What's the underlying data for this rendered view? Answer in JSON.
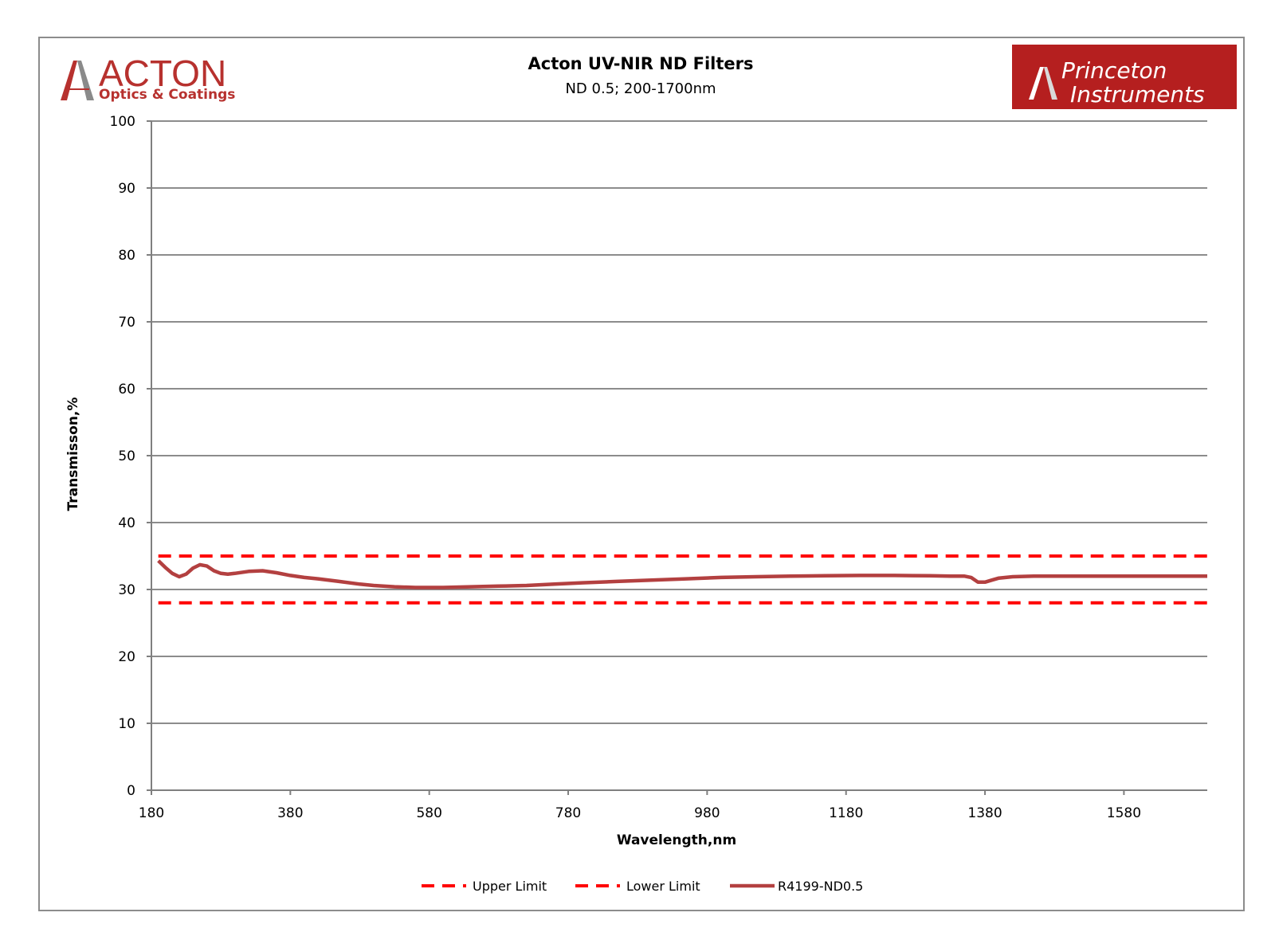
{
  "logos": {
    "left": {
      "name": "ACTON",
      "subtitle": "Optics & Coatings",
      "color": "#b7312e"
    },
    "right": {
      "line1": "Princeton",
      "line2": "Instruments",
      "background": "#b51f1f"
    }
  },
  "chart_data": {
    "type": "line",
    "title": "Acton UV-NIR ND Filters",
    "subtitle": "ND  0.5;  200-1700nm",
    "xlabel": "Wavelength,nm",
    "ylabel": "Transmisson,%",
    "xlim": [
      180,
      1700
    ],
    "ylim": [
      0,
      100
    ],
    "xticks": [
      180,
      380,
      580,
      780,
      980,
      1180,
      1380,
      1580
    ],
    "yticks": [
      0,
      10,
      20,
      30,
      40,
      50,
      60,
      70,
      80,
      90,
      100
    ],
    "grid": "horizontal",
    "legend_position": "bottom",
    "series": [
      {
        "name": "Upper Limit",
        "style": "dashed",
        "color": "#ff0000",
        "x": [
          190,
          1700
        ],
        "y": [
          35,
          35
        ]
      },
      {
        "name": "Lower Limit",
        "style": "dashed",
        "color": "#ff0000",
        "x": [
          190,
          1700
        ],
        "y": [
          28,
          28
        ]
      },
      {
        "name": "R4199-ND0.5",
        "style": "solid",
        "color": "#b34040",
        "x": [
          190,
          200,
          210,
          220,
          230,
          240,
          250,
          260,
          270,
          280,
          290,
          300,
          320,
          340,
          360,
          380,
          400,
          420,
          450,
          480,
          500,
          530,
          560,
          580,
          600,
          640,
          680,
          720,
          760,
          800,
          850,
          900,
          950,
          1000,
          1050,
          1100,
          1150,
          1200,
          1250,
          1300,
          1330,
          1350,
          1360,
          1370,
          1380,
          1390,
          1400,
          1420,
          1450,
          1500,
          1550,
          1600,
          1650,
          1700
        ],
        "y": [
          34.3,
          33.3,
          32.4,
          31.9,
          32.3,
          33.2,
          33.7,
          33.5,
          32.8,
          32.4,
          32.3,
          32.4,
          32.7,
          32.8,
          32.5,
          32.1,
          31.8,
          31.6,
          31.2,
          30.8,
          30.6,
          30.4,
          30.3,
          30.3,
          30.3,
          30.4,
          30.5,
          30.6,
          30.8,
          31.0,
          31.2,
          31.4,
          31.6,
          31.8,
          31.9,
          32.0,
          32.05,
          32.1,
          32.1,
          32.05,
          32.0,
          32.0,
          31.8,
          31.1,
          31.1,
          31.4,
          31.7,
          31.9,
          32.0,
          32.0,
          32.0,
          32.0,
          32.0,
          32.0
        ]
      }
    ]
  }
}
